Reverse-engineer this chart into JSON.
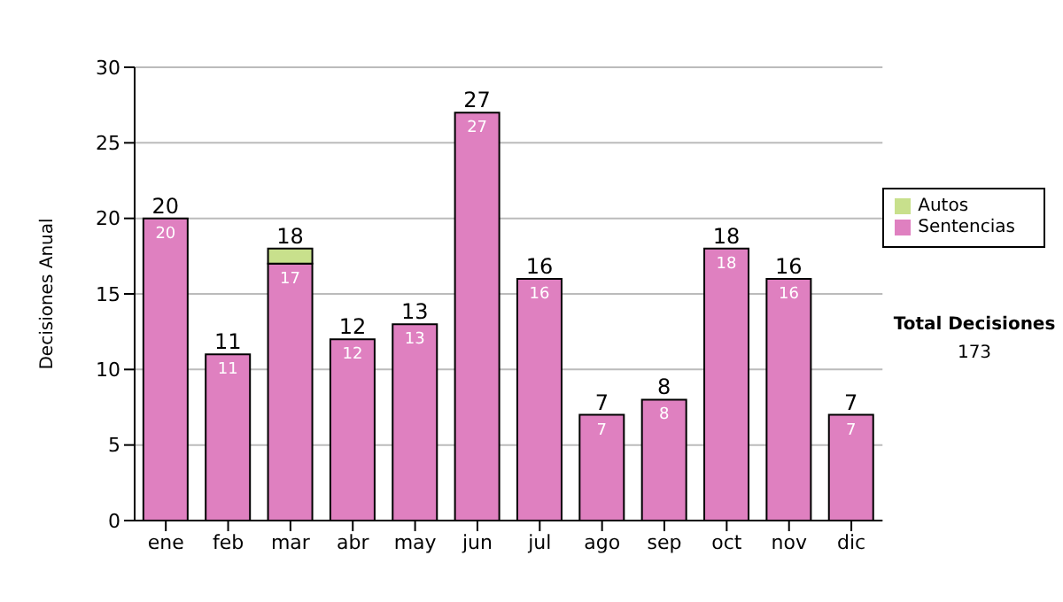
{
  "chart_data": {
    "type": "bar",
    "ylabel": "Decisiones Anual",
    "categories": [
      "ene",
      "feb",
      "mar",
      "abr",
      "may",
      "jun",
      "jul",
      "ago",
      "sep",
      "oct",
      "nov",
      "dic"
    ],
    "series": [
      {
        "name": "Sentencias",
        "color": "#df80c0",
        "values": [
          20,
          11,
          17,
          12,
          13,
          27,
          16,
          7,
          8,
          18,
          16,
          7
        ],
        "value_labels": [
          "20",
          "11",
          "17",
          "12",
          "13",
          "27",
          "16",
          "7",
          "8",
          "18",
          "16",
          "7"
        ]
      },
      {
        "name": "Autos",
        "color": "#c8e08c",
        "values": [
          0,
          0,
          1,
          0,
          0,
          0,
          0,
          0,
          0,
          0,
          0,
          0
        ]
      }
    ],
    "stacked": true,
    "totals": [
      "20",
      "11",
      "18",
      "12",
      "13",
      "27",
      "16",
      "7",
      "8",
      "18",
      "16",
      "7"
    ],
    "ylim": [
      0,
      30
    ],
    "yticks": [
      0,
      5,
      10,
      15,
      20,
      25,
      30
    ],
    "grid": "y",
    "legend": "right",
    "annotations": [
      "Total Decisiones",
      "173"
    ]
  }
}
